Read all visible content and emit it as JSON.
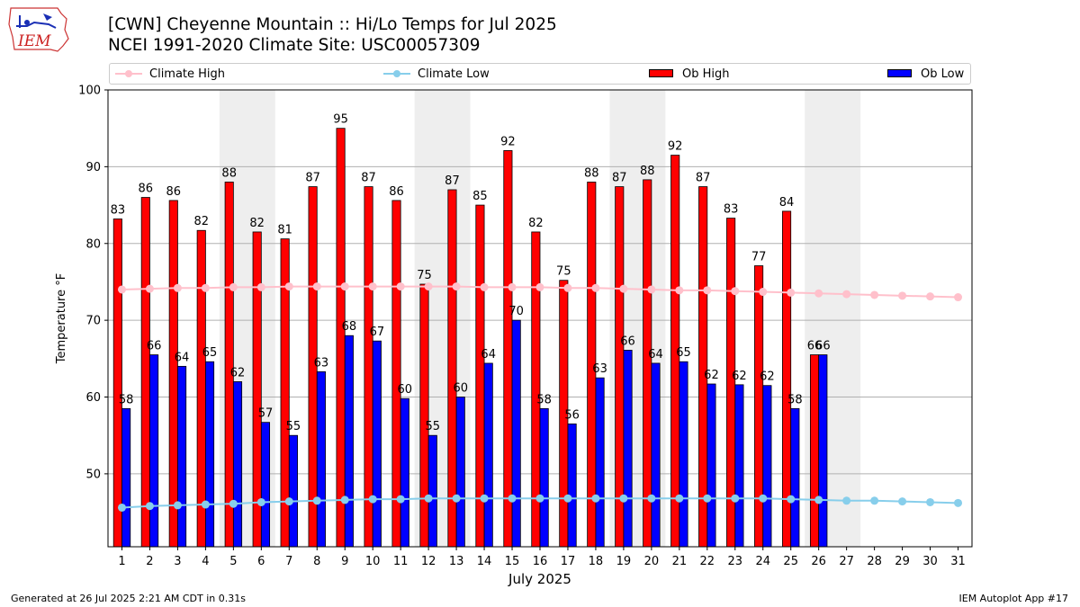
{
  "header": {
    "title_line1": "[CWN] Cheyenne Mountain :: Hi/Lo Temps for Jul 2025",
    "title_line2": "NCEI 1991-2020 Climate Site: USC00057309",
    "logo_text": "IEM"
  },
  "legend": {
    "items": [
      {
        "label": "Climate High",
        "color": "#ffc0cb",
        "kind": "line"
      },
      {
        "label": "Climate Low",
        "color": "#87ceeb",
        "kind": "line"
      },
      {
        "label": "Ob High",
        "color": "#ff0000",
        "kind": "bar"
      },
      {
        "label": "Ob Low",
        "color": "#0000ff",
        "kind": "bar"
      }
    ]
  },
  "footer": {
    "generated": "Generated at 26 Jul 2025 2:21 AM CDT in 0.31s",
    "app": "IEM Autoplot App #17"
  },
  "chart_data": {
    "type": "bar",
    "xlabel": "July 2025",
    "ylabel": "Temperature °F",
    "ylim": [
      40.5,
      100
    ],
    "yticks": [
      50,
      60,
      70,
      80,
      90,
      100
    ],
    "grid": "horizontal",
    "weekend_shading": [
      [
        5,
        6
      ],
      [
        12,
        13
      ],
      [
        19,
        20
      ],
      [
        26,
        27
      ]
    ],
    "shade_color": "#eeeeee",
    "days": [
      1,
      2,
      3,
      4,
      5,
      6,
      7,
      8,
      9,
      10,
      11,
      12,
      13,
      14,
      15,
      16,
      17,
      18,
      19,
      20,
      21,
      22,
      23,
      24,
      25,
      26,
      27,
      28,
      29,
      30,
      31
    ],
    "series": [
      {
        "name": "Ob High",
        "kind": "bar",
        "color": "#ff0000",
        "values": [
          83.2,
          86,
          85.6,
          81.7,
          88,
          81.5,
          80.6,
          87.4,
          95,
          87.4,
          85.6,
          74.7,
          87,
          85,
          92.1,
          81.5,
          75.2,
          88,
          87.4,
          88.3,
          91.5,
          87.4,
          83.3,
          77.1,
          84.2,
          65.5
        ],
        "labels": [
          "83",
          "86",
          "86",
          "82",
          "88",
          "82",
          "81",
          "87",
          "95",
          "87",
          "86",
          "75",
          "87",
          "85",
          "92",
          "82",
          "75",
          "88",
          "87",
          "88",
          "92",
          "87",
          "83",
          "77",
          "84",
          "66"
        ]
      },
      {
        "name": "Ob Low",
        "kind": "bar",
        "color": "#0000ff",
        "values": [
          58.5,
          65.5,
          64,
          64.6,
          62,
          56.7,
          55,
          63.3,
          68,
          67.3,
          59.8,
          55,
          60,
          64.4,
          70,
          58.5,
          56.5,
          62.5,
          66.1,
          64.4,
          64.6,
          61.7,
          61.6,
          61.5,
          58.5,
          65.5
        ],
        "labels": [
          "58",
          "66",
          "64",
          "65",
          "62",
          "57",
          "55",
          "63",
          "68",
          "67",
          "60",
          "55",
          "60",
          "64",
          "70",
          "58",
          "56",
          "63",
          "66",
          "64",
          "65",
          "62",
          "62",
          "62",
          "58",
          "66"
        ]
      },
      {
        "name": "Climate High",
        "kind": "line",
        "color": "#ffc0cb",
        "values": [
          74.0,
          74.1,
          74.2,
          74.2,
          74.3,
          74.3,
          74.4,
          74.4,
          74.4,
          74.4,
          74.4,
          74.4,
          74.4,
          74.3,
          74.3,
          74.3,
          74.2,
          74.2,
          74.1,
          74.0,
          73.9,
          73.9,
          73.8,
          73.7,
          73.6,
          73.5,
          73.4,
          73.3,
          73.2,
          73.1,
          73.0
        ]
      },
      {
        "name": "Climate Low",
        "kind": "line",
        "color": "#87ceeb",
        "values": [
          45.6,
          45.8,
          45.9,
          46.0,
          46.1,
          46.3,
          46.4,
          46.5,
          46.6,
          46.7,
          46.7,
          46.8,
          46.8,
          46.8,
          46.8,
          46.8,
          46.8,
          46.8,
          46.8,
          46.8,
          46.8,
          46.8,
          46.8,
          46.8,
          46.7,
          46.6,
          46.5,
          46.5,
          46.4,
          46.3,
          46.2
        ]
      }
    ]
  }
}
